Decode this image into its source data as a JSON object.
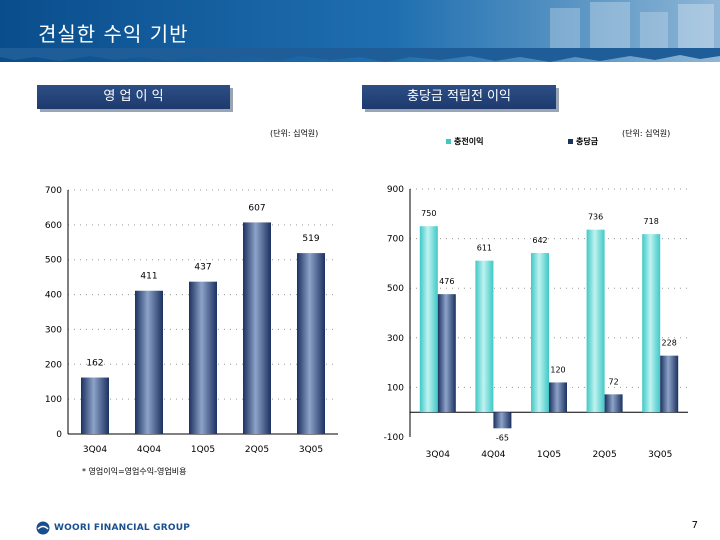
{
  "slide": {
    "title": "견실한 수익 기반",
    "page_number": "7",
    "logo_text": "WOORI FINANCIAL GROUP"
  },
  "left_panel": {
    "heading": "영 업 이 익",
    "unit": "(단위: 십억원)",
    "footnote": "* 영업이익=영업수익-영업비용"
  },
  "right_panel": {
    "heading": "충당금 적립전 이익",
    "unit": "(단위: 십억원)"
  },
  "chart_data": [
    {
      "type": "bar",
      "categories": [
        "3Q04",
        "4Q04",
        "1Q05",
        "2Q05",
        "3Q05"
      ],
      "values": [
        162,
        411,
        437,
        607,
        519
      ],
      "ylim": [
        0,
        700
      ],
      "yticks": [
        0,
        100,
        200,
        300,
        400,
        500,
        600,
        700
      ],
      "grid": true,
      "colors": [
        "#1b3160",
        "#8ea3c8"
      ]
    },
    {
      "type": "bar",
      "categories": [
        "3Q04",
        "4Q04",
        "1Q05",
        "2Q05",
        "3Q05"
      ],
      "series": [
        {
          "name": "충전이익",
          "values": [
            750,
            611,
            642,
            736,
            718
          ],
          "color": "#3fc8c6"
        },
        {
          "name": "충당금",
          "values": [
            476,
            -65,
            120,
            72,
            228
          ],
          "color": "#1b3160"
        }
      ],
      "ylim": [
        -100,
        900
      ],
      "yticks": [
        -100,
        100,
        300,
        500,
        700,
        900
      ],
      "legend": "top",
      "grid": true
    }
  ]
}
